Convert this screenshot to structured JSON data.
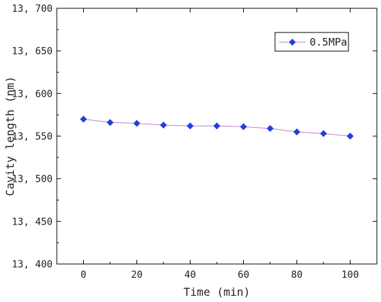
{
  "chart_data": {
    "type": "line",
    "title": "",
    "xlabel": "Time (min)",
    "ylabel": "Cavity length (nm)",
    "xlim": [
      -10,
      110
    ],
    "ylim": [
      13400,
      13700
    ],
    "x_ticks": [
      0,
      20,
      40,
      60,
      80,
      100
    ],
    "y_ticks": [
      13400,
      13450,
      13500,
      13550,
      13600,
      13650,
      13700
    ],
    "x_tick_labels": [
      "0",
      "20",
      "40",
      "60",
      "80",
      "100"
    ],
    "y_tick_labels": [
      "13, 400",
      "13, 450",
      "13, 500",
      "13, 550",
      "13, 600",
      "13, 650",
      "13, 700"
    ],
    "grid": false,
    "legend_position": "top-right",
    "series": [
      {
        "name": "0.5MPa",
        "marker": "diamond",
        "marker_color": "#1f3fe0",
        "line_color": "#c77ad6",
        "x": [
          0,
          10,
          20,
          30,
          40,
          50,
          60,
          70,
          80,
          90,
          100
        ],
        "y": [
          13570,
          13566,
          13565,
          13563,
          13562,
          13562,
          13561,
          13559,
          13555,
          13553,
          13550
        ]
      }
    ]
  }
}
